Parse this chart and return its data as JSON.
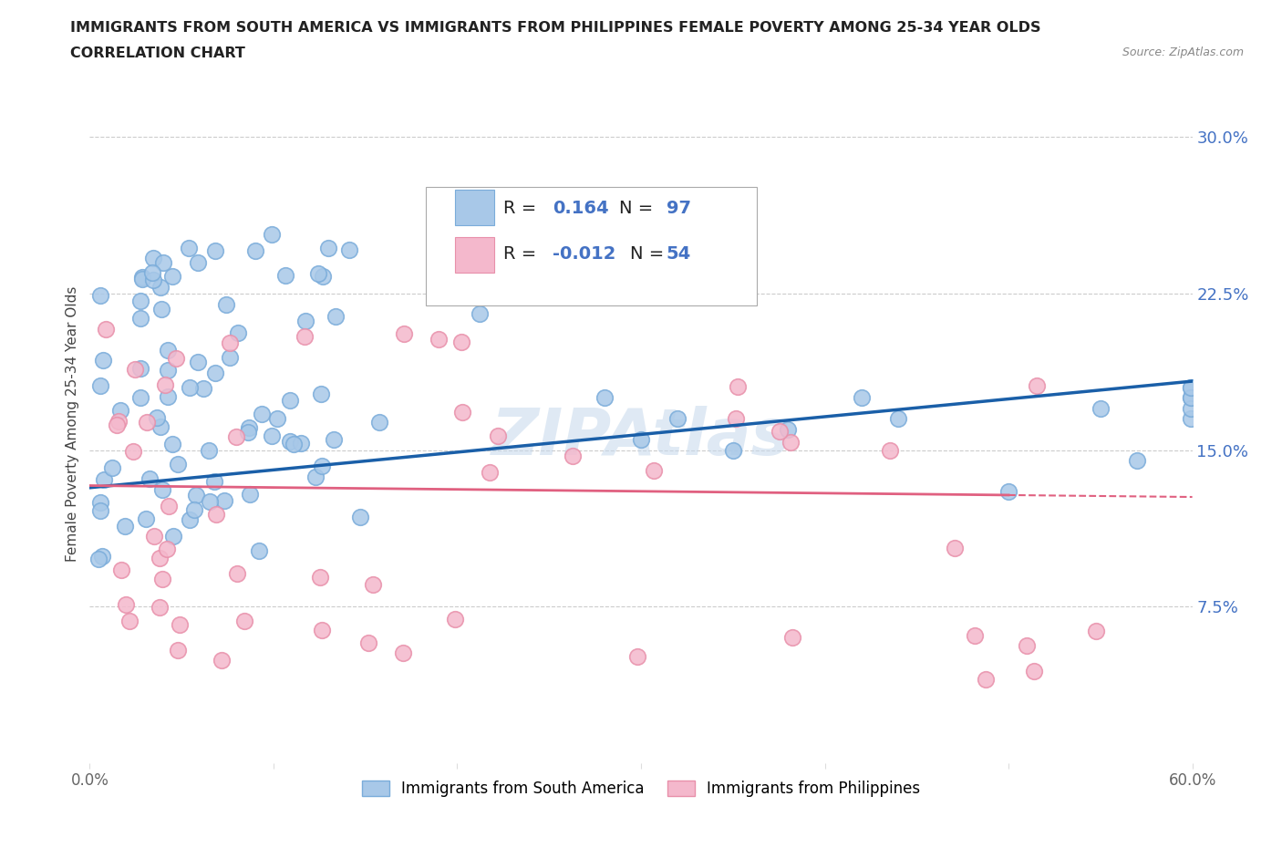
{
  "title_line1": "IMMIGRANTS FROM SOUTH AMERICA VS IMMIGRANTS FROM PHILIPPINES FEMALE POVERTY AMONG 25-34 YEAR OLDS",
  "title_line2": "CORRELATION CHART",
  "source": "Source: ZipAtlas.com",
  "ylabel": "Female Poverty Among 25-34 Year Olds",
  "xlim": [
    0.0,
    0.6
  ],
  "ylim": [
    0.0,
    0.325
  ],
  "xticks": [
    0.0,
    0.1,
    0.2,
    0.3,
    0.4,
    0.5,
    0.6
  ],
  "xtick_labels": [
    "0.0%",
    "",
    "",
    "",
    "",
    "",
    "60.0%"
  ],
  "yticks_right": [
    0.075,
    0.15,
    0.225,
    0.3
  ],
  "ytick_labels_right": [
    "7.5%",
    "15.0%",
    "22.5%",
    "30.0%"
  ],
  "blue_color": "#a8c8e8",
  "blue_edge_color": "#7aacda",
  "pink_color": "#f4b8cc",
  "pink_edge_color": "#e890aa",
  "blue_line_color": "#1a5fa8",
  "pink_line_color": "#e06080",
  "legend_R1": "0.164",
  "legend_N1": "97",
  "legend_R2": "-0.012",
  "legend_N2": "54",
  "legend_label1": "Immigrants from South America",
  "legend_label2": "Immigrants from Philippines",
  "watermark": "ZIPAtlas",
  "background_color": "#ffffff",
  "grid_color": "#cccccc",
  "R1": 0.164,
  "N1": 97,
  "R2": -0.012,
  "N2": 54,
  "blue_trend_x0": 0.0,
  "blue_trend_y0": 0.132,
  "blue_trend_x1": 0.6,
  "blue_trend_y1": 0.183,
  "pink_trend_x0": 0.0,
  "pink_trend_y0": 0.133,
  "pink_trend_x1": 0.55,
  "pink_trend_y1": 0.128
}
